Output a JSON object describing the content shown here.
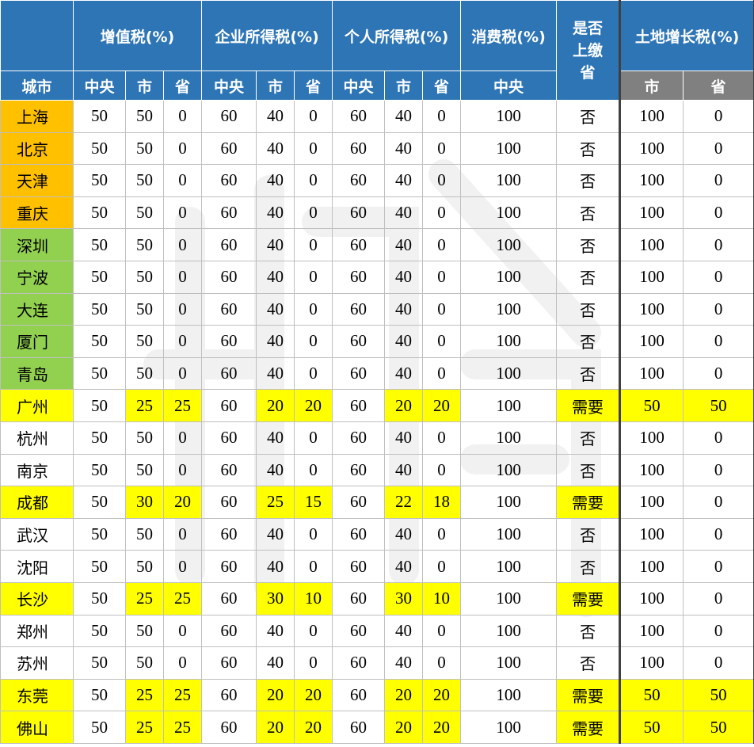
{
  "headers": {
    "vat": "增值税(%)",
    "corp": "企业所得税(%)",
    "personal": "个人所得税(%)",
    "consumption": "消费税(%)",
    "submit_line1": "是否",
    "submit_line2": "上缴",
    "submit_line3": "省",
    "land": "土地增长税(%)",
    "city_label": "城市",
    "sub_central": "中央",
    "sub_city": "市",
    "sub_province": "省"
  },
  "colors": {
    "header_blue": "#2e75b6",
    "header_gray": "#808080",
    "tier1_orange": "#ffc000",
    "tier2_green": "#92d050",
    "highlight_yellow": "#ffff00"
  },
  "rows": [
    {
      "city": "上海",
      "tier": "orange",
      "cells": [
        "50",
        "50",
        "0",
        "60",
        "40",
        "0",
        "60",
        "40",
        "0",
        "100",
        "否",
        "100",
        "0"
      ],
      "hl": false
    },
    {
      "city": "北京",
      "tier": "orange",
      "cells": [
        "50",
        "50",
        "0",
        "60",
        "40",
        "0",
        "60",
        "40",
        "0",
        "100",
        "否",
        "100",
        "0"
      ],
      "hl": false
    },
    {
      "city": "天津",
      "tier": "orange",
      "cells": [
        "50",
        "50",
        "0",
        "60",
        "40",
        "0",
        "60",
        "40",
        "0",
        "100",
        "否",
        "100",
        "0"
      ],
      "hl": false
    },
    {
      "city": "重庆",
      "tier": "orange",
      "cells": [
        "50",
        "50",
        "0",
        "60",
        "40",
        "0",
        "60",
        "40",
        "0",
        "100",
        "否",
        "100",
        "0"
      ],
      "hl": false
    },
    {
      "city": "深圳",
      "tier": "green",
      "cells": [
        "50",
        "50",
        "0",
        "60",
        "40",
        "0",
        "60",
        "40",
        "0",
        "100",
        "否",
        "100",
        "0"
      ],
      "hl": false
    },
    {
      "city": "宁波",
      "tier": "green",
      "cells": [
        "50",
        "50",
        "0",
        "60",
        "40",
        "0",
        "60",
        "40",
        "0",
        "100",
        "否",
        "100",
        "0"
      ],
      "hl": false
    },
    {
      "city": "大连",
      "tier": "green",
      "cells": [
        "50",
        "50",
        "0",
        "60",
        "40",
        "0",
        "60",
        "40",
        "0",
        "100",
        "否",
        "100",
        "0"
      ],
      "hl": false
    },
    {
      "city": "厦门",
      "tier": "green",
      "cells": [
        "50",
        "50",
        "0",
        "60",
        "40",
        "0",
        "60",
        "40",
        "0",
        "100",
        "否",
        "100",
        "0"
      ],
      "hl": false
    },
    {
      "city": "青岛",
      "tier": "green",
      "cells": [
        "50",
        "50",
        "0",
        "60",
        "40",
        "0",
        "60",
        "40",
        "0",
        "100",
        "否",
        "100",
        "0"
      ],
      "hl": false
    },
    {
      "city": "广州",
      "tier": "yellow",
      "cells": [
        "50",
        "25",
        "25",
        "60",
        "20",
        "20",
        "60",
        "20",
        "20",
        "100",
        "需要",
        "50",
        "50"
      ],
      "hl": true,
      "land_hl": true
    },
    {
      "city": "杭州",
      "tier": "white",
      "cells": [
        "50",
        "50",
        "0",
        "60",
        "40",
        "0",
        "60",
        "40",
        "0",
        "100",
        "否",
        "100",
        "0"
      ],
      "hl": false
    },
    {
      "city": "南京",
      "tier": "white",
      "cells": [
        "50",
        "50",
        "0",
        "60",
        "40",
        "0",
        "60",
        "40",
        "0",
        "100",
        "否",
        "100",
        "0"
      ],
      "hl": false
    },
    {
      "city": "成都",
      "tier": "yellow",
      "cells": [
        "50",
        "30",
        "20",
        "60",
        "25",
        "15",
        "60",
        "22",
        "18",
        "100",
        "需要",
        "100",
        "0"
      ],
      "hl": true,
      "land_hl": false
    },
    {
      "city": "武汉",
      "tier": "white",
      "cells": [
        "50",
        "50",
        "0",
        "60",
        "40",
        "0",
        "60",
        "40",
        "0",
        "100",
        "否",
        "100",
        "0"
      ],
      "hl": false
    },
    {
      "city": "沈阳",
      "tier": "white",
      "cells": [
        "50",
        "50",
        "0",
        "60",
        "40",
        "0",
        "60",
        "40",
        "0",
        "100",
        "否",
        "100",
        "0"
      ],
      "hl": false
    },
    {
      "city": "长沙",
      "tier": "yellow",
      "cells": [
        "50",
        "25",
        "25",
        "60",
        "30",
        "10",
        "60",
        "30",
        "10",
        "100",
        "需要",
        "100",
        "0"
      ],
      "hl": true,
      "land_hl": false
    },
    {
      "city": "郑州",
      "tier": "white",
      "cells": [
        "50",
        "50",
        "0",
        "60",
        "40",
        "0",
        "60",
        "40",
        "0",
        "100",
        "否",
        "100",
        "0"
      ],
      "hl": false
    },
    {
      "city": "苏州",
      "tier": "white",
      "cells": [
        "50",
        "50",
        "0",
        "60",
        "40",
        "0",
        "60",
        "40",
        "0",
        "100",
        "否",
        "100",
        "0"
      ],
      "hl": false
    },
    {
      "city": "东莞",
      "tier": "yellow",
      "cells": [
        "50",
        "25",
        "25",
        "60",
        "20",
        "20",
        "60",
        "20",
        "20",
        "100",
        "需要",
        "50",
        "50"
      ],
      "hl": true,
      "land_hl": true
    },
    {
      "city": "佛山",
      "tier": "yellow",
      "cells": [
        "50",
        "25",
        "25",
        "60",
        "20",
        "20",
        "60",
        "20",
        "20",
        "100",
        "需要",
        "50",
        "50"
      ],
      "hl": true,
      "land_hl": true
    }
  ]
}
